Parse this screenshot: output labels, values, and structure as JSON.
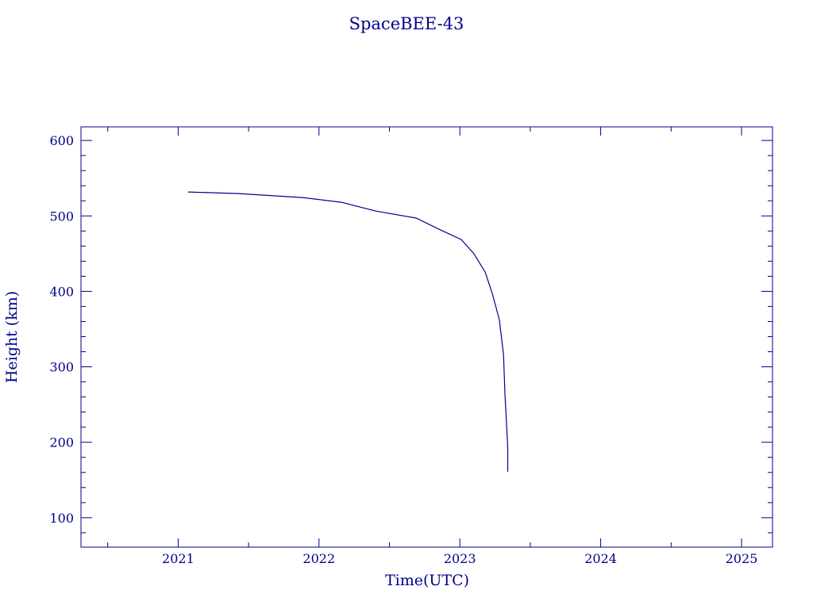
{
  "chart_data": {
    "type": "line",
    "title": "SpaceBEE-43",
    "xlabel": "Time(UTC)",
    "ylabel": "Height (km)",
    "xlim": [
      2020.31,
      2025.22
    ],
    "ylim": [
      61,
      618
    ],
    "x_ticks": [
      2021,
      2022,
      2023,
      2024,
      2025
    ],
    "x_tick_labels": [
      "2021",
      "2022",
      "2023",
      "2024",
      "2025"
    ],
    "y_ticks": [
      100,
      200,
      300,
      400,
      500,
      600
    ],
    "y_tick_labels": [
      "100",
      "200",
      "300",
      "400",
      "500",
      "600"
    ],
    "grid": false,
    "color": "#00008b",
    "series": [
      {
        "x": [
          2021.07,
          2021.43,
          2021.88,
          2022.16,
          2022.4,
          2022.69,
          2022.84,
          2023.01,
          2023.1,
          2023.18,
          2023.23,
          2023.28,
          2023.31,
          2023.32,
          2023.34,
          2023.34
        ],
        "y": [
          531.7,
          529.6,
          524.4,
          518.1,
          506.5,
          497.1,
          483.4,
          468.7,
          449.8,
          425.6,
          397.3,
          362.6,
          316.4,
          263.9,
          194.5,
          160.9
        ]
      }
    ]
  }
}
